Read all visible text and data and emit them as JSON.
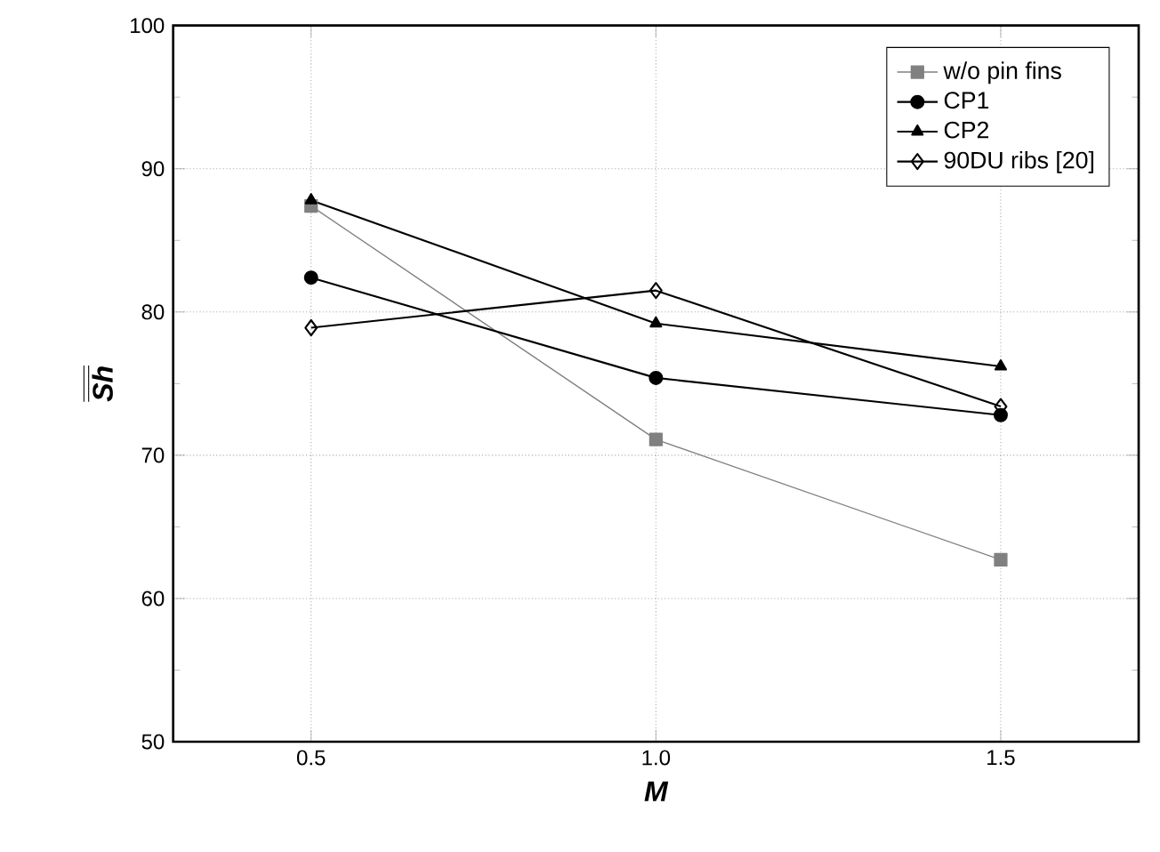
{
  "chart_data": {
    "type": "line",
    "xlabel": "M",
    "ylabel": "Sh",
    "x": [
      0.5,
      1.0,
      1.5
    ],
    "series": [
      {
        "name": "w/o pin fins",
        "color": "#808080",
        "marker": "square",
        "values": [
          87.4,
          71.1,
          62.7
        ]
      },
      {
        "name": "CP1",
        "color": "#000000",
        "marker": "circle",
        "values": [
          82.4,
          75.4,
          72.8
        ]
      },
      {
        "name": "CP2",
        "color": "#000000",
        "marker": "triangle",
        "values": [
          87.8,
          79.2,
          76.2
        ]
      },
      {
        "name": "90DU ribs [20]",
        "color": "#000000",
        "marker": "diamond",
        "values": [
          78.9,
          81.5,
          73.4
        ]
      }
    ],
    "xlim": [
      0.3,
      1.7
    ],
    "ylim": [
      50,
      100
    ],
    "xticks": [
      0.5,
      {
        "value": 1.0,
        "label": "1.0"
      },
      1.5
    ],
    "yticks": [
      50,
      60,
      70,
      80,
      90,
      100
    ],
    "grid": true,
    "legend": "top right",
    "line_style": "solid"
  }
}
